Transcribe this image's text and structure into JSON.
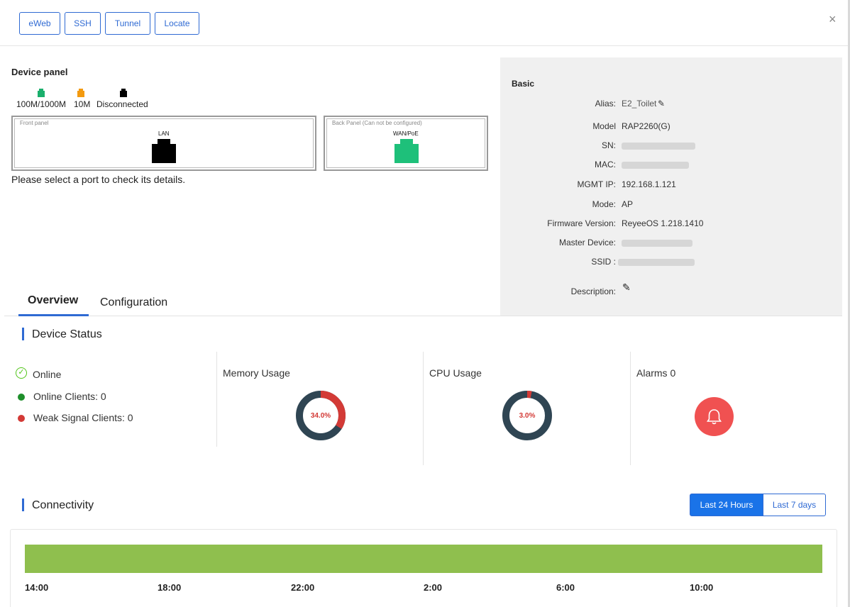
{
  "toolbar": {
    "buttons": [
      "eWeb",
      "SSH",
      "Tunnel",
      "Locate"
    ],
    "close": "×"
  },
  "device_panel": {
    "title": "Device panel",
    "legend": [
      {
        "label": "100M/1000M",
        "color": "#1aaf6c"
      },
      {
        "label": "10M",
        "color": "#f39a10"
      },
      {
        "label": "Disconnected",
        "color": "#000000"
      }
    ],
    "front_caption": "Front panel",
    "back_caption": "Back Panel (Can not be configured)",
    "ports": [
      {
        "label": "LAN",
        "status": "Disconnected",
        "color": "#000000"
      },
      {
        "label": "WAN/PoE",
        "status": "100M/1000M",
        "color": "#1ec07a"
      }
    ],
    "hint": "Please select a port to check its details."
  },
  "basic": {
    "title": "Basic",
    "rows": [
      {
        "label": "Alias:",
        "value": "E2_Toilet"
      },
      {
        "label": "Model",
        "value": "RAP2260(G)"
      },
      {
        "label": "SN:",
        "value": ""
      },
      {
        "label": "MAC:",
        "value": ""
      },
      {
        "label": "MGMT IP:",
        "value": "192.168.1.121"
      },
      {
        "label": "Mode:",
        "value": "AP"
      },
      {
        "label": "Firmware Version:",
        "value": "ReyeeOS 1.218.1410"
      },
      {
        "label": "Master Device:",
        "value": ""
      },
      {
        "label": "SSID :",
        "value": ""
      },
      {
        "label": "Description:",
        "value": ""
      }
    ]
  },
  "tabs": [
    "Overview",
    "Configuration"
  ],
  "status": {
    "title": "Device Status",
    "online": "Online",
    "online_clients": "Online Clients: 0",
    "weak_clients": "Weak Signal Clients: 0",
    "memory": {
      "label": "Memory Usage",
      "value_text": "34.0%",
      "percent": 34.0
    },
    "cpu": {
      "label": "CPU Usage",
      "value_text": "3.0%",
      "percent": 3.0
    },
    "alarms": "Alarms 0"
  },
  "connectivity": {
    "title": "Connectivity",
    "ranges": [
      "Last 24 Hours",
      "Last 7 days"
    ],
    "selected_range": "Last 24 Hours",
    "ticks": [
      "14:00",
      "18:00",
      "22:00",
      "2:00",
      "6:00",
      "10:00"
    ]
  },
  "colors": {
    "accent": "#2f6ad3",
    "donut_used": "#d33a36",
    "donut_free": "#2f4553",
    "alarm": "#f05151",
    "online_green": "#1e8f2b",
    "weak_red": "#d33a36",
    "connectivity_bar": "#8fbf4e"
  }
}
